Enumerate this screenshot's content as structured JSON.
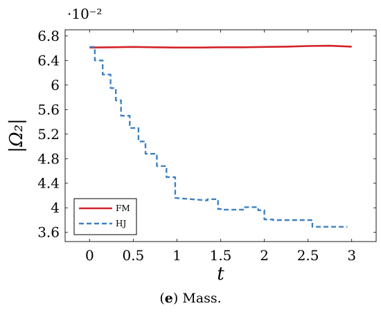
{
  "chart_data": {
    "type": "line",
    "title": "",
    "xlabel": "t",
    "ylabel": "|Ω₂|",
    "y_multiplier": "·10⁻²",
    "xlim": [
      -0.28,
      3.28
    ],
    "ylim": [
      3.45,
      6.9
    ],
    "x_ticks": [
      0,
      0.5,
      1,
      1.5,
      2,
      2.5,
      3
    ],
    "x_tick_labels": [
      "0",
      "0.5",
      "1",
      "1.5",
      "2",
      "2.5",
      "3"
    ],
    "y_ticks": [
      3.6,
      4,
      4.4,
      4.8,
      5.2,
      5.6,
      6,
      6.4,
      6.8
    ],
    "y_tick_labels": [
      "3.6",
      "4",
      "4.4",
      "4.8",
      "5.2",
      "5.6",
      "6",
      "6.4",
      "6.8"
    ],
    "grid": false,
    "legend_position": "bottom-left",
    "series": [
      {
        "name": "FM",
        "color": "#d42027",
        "style": "solid",
        "x": [
          0,
          0.25,
          0.5,
          0.75,
          1.0,
          1.25,
          1.5,
          1.75,
          2.0,
          2.25,
          2.5,
          2.75,
          3.0
        ],
        "y": [
          6.61,
          6.615,
          6.62,
          6.615,
          6.61,
          6.61,
          6.615,
          6.615,
          6.62,
          6.625,
          6.635,
          6.64,
          6.625
        ]
      },
      {
        "name": "HJ",
        "color": "#3d80c4",
        "style": "dashed",
        "x": [
          0,
          0.06,
          0.06,
          0.15,
          0.15,
          0.24,
          0.24,
          0.3,
          0.3,
          0.36,
          0.36,
          0.46,
          0.46,
          0.56,
          0.56,
          0.64,
          0.64,
          0.77,
          0.77,
          0.88,
          0.88,
          0.98,
          0.98,
          1.35,
          1.35,
          1.47,
          1.47,
          1.53,
          1.53,
          1.78,
          1.78,
          1.93,
          1.93,
          2.0,
          2.0,
          2.1,
          2.1,
          2.55,
          2.55,
          2.95
        ],
        "y": [
          6.62,
          6.62,
          6.4,
          6.4,
          6.17,
          6.17,
          5.95,
          5.95,
          5.75,
          5.75,
          5.5,
          5.5,
          5.3,
          5.3,
          5.08,
          5.08,
          4.88,
          4.88,
          4.68,
          4.68,
          4.5,
          4.5,
          4.16,
          4.12,
          4.14,
          4.14,
          3.98,
          3.98,
          3.97,
          3.97,
          4.01,
          4.01,
          3.96,
          3.96,
          3.81,
          3.81,
          3.8,
          3.8,
          3.69,
          3.69
        ]
      }
    ]
  },
  "caption": {
    "label": "(e)",
    "label_bold": "e",
    "text": "Mass."
  }
}
